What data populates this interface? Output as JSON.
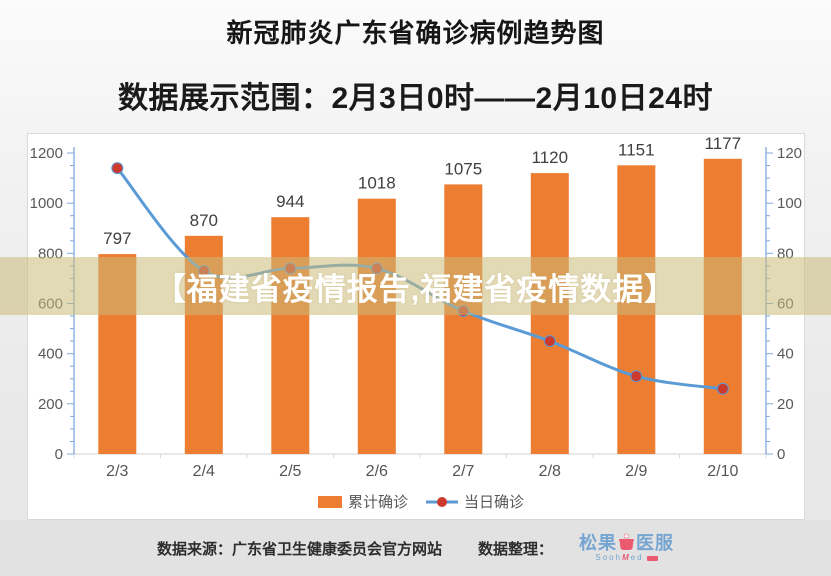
{
  "header": {
    "title": "新冠肺炎广东省确诊病例趋势图",
    "subtitle": "数据展示范围：2月3日0时——2月10日24时"
  },
  "watermark": {
    "text": "【福建省疫情报告,福建省疫情数据】",
    "band_color": "rgba(203,185,121,0.55)",
    "text_color": "#ffffff"
  },
  "chart_data": {
    "type": "bar",
    "title": "",
    "xlabel": "",
    "ylabel": "",
    "categories": [
      "2/3",
      "2/4",
      "2/5",
      "2/6",
      "2/7",
      "2/8",
      "2/9",
      "2/10"
    ],
    "series": [
      {
        "name": "累计确诊",
        "kind": "bar",
        "axis": "left",
        "color": "#ED7D31",
        "values": [
          797,
          870,
          944,
          1018,
          1075,
          1120,
          1151,
          1177
        ]
      },
      {
        "name": "当日确诊",
        "kind": "line",
        "axis": "right",
        "color": "#5B9BD5",
        "marker_color": "#CC3A2E",
        "values": [
          114,
          73,
          74,
          74,
          57,
          45,
          31,
          26
        ]
      }
    ],
    "left_axis": {
      "min": 0,
      "max": 1200,
      "major_step": 200,
      "minor_step": 50,
      "tick_labels": [
        "0",
        "200",
        "400",
        "600",
        "800",
        "1000",
        "1200"
      ]
    },
    "right_axis": {
      "min": 0,
      "max": 120,
      "major_step": 20,
      "minor_step": 5,
      "tick_labels": [
        "0",
        "20",
        "40",
        "60",
        "80",
        "100",
        "120"
      ]
    },
    "legend_position": "bottom",
    "grid": false,
    "colors": {
      "axis": "#7FA9DA",
      "x_axis_line": "#D9D9D9",
      "tick_label": "#595959",
      "bar_label": "#404040",
      "x_label": "#555555"
    }
  },
  "footer": {
    "source_label": "数据来源：",
    "source": "广东省卫生健康委员会官方网站",
    "organizer_label": "数据整理：",
    "logo": {
      "prefix": "松果",
      "suffix": "医服",
      "sub_left": "Sooh",
      "sub_m": "M",
      "sub_rest": "ed",
      "blue": "#76A5D2",
      "red": "#EA5B70"
    }
  }
}
